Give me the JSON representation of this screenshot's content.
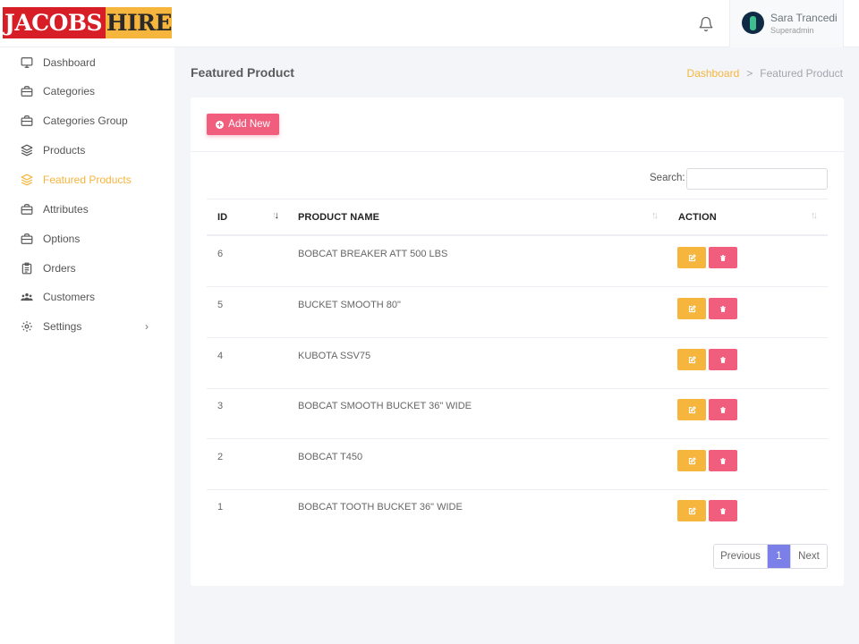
{
  "brand": {
    "part1": "JACOBS",
    "part2": "HIRE",
    "color_red": "#d71d26",
    "color_gold": "#f6b53d"
  },
  "header": {
    "bell_icon": "bell-icon",
    "user_name": "Sara Trancedi",
    "user_role": "Superadmin"
  },
  "sidebar": {
    "items": [
      {
        "label": "Dashboard",
        "icon": "monitor-icon"
      },
      {
        "label": "Categories",
        "icon": "briefcase-icon"
      },
      {
        "label": "Categories Group",
        "icon": "briefcase-icon"
      },
      {
        "label": "Products",
        "icon": "layers-icon"
      },
      {
        "label": "Featured Products",
        "icon": "layers-icon",
        "active": true
      },
      {
        "label": "Attributes",
        "icon": "briefcase-icon"
      },
      {
        "label": "Options",
        "icon": "briefcase-icon"
      },
      {
        "label": "Orders",
        "icon": "clipboard-icon"
      },
      {
        "label": "Customers",
        "icon": "users-icon"
      },
      {
        "label": "Settings",
        "icon": "cog-icon",
        "has_submenu": true
      }
    ]
  },
  "page": {
    "title": "Featured Product",
    "breadcrumb": {
      "link": "Dashboard",
      "separator": ">",
      "current": "Featured Product"
    }
  },
  "toolbar": {
    "add_label": "Add New"
  },
  "search": {
    "label": "Search:",
    "value": ""
  },
  "table": {
    "columns": [
      "ID",
      "PRODUCT NAME",
      "ACTION"
    ],
    "rows": [
      {
        "id": "6",
        "name": "BOBCAT BREAKER ATT 500 LBS"
      },
      {
        "id": "5",
        "name": "BUCKET SMOOTH 80\""
      },
      {
        "id": "4",
        "name": "KUBOTA SSV75"
      },
      {
        "id": "3",
        "name": "BOBCAT SMOOTH BUCKET 36\" WIDE"
      },
      {
        "id": "2",
        "name": "BOBCAT T450"
      },
      {
        "id": "1",
        "name": "BOBCAT TOOTH BUCKET 36\" WIDE"
      }
    ]
  },
  "pagination": {
    "previous": "Previous",
    "current": "1",
    "next": "Next"
  },
  "colors": {
    "accent": "#f6b53d",
    "danger": "#f05d7d",
    "page_active": "#7b7fe8"
  }
}
